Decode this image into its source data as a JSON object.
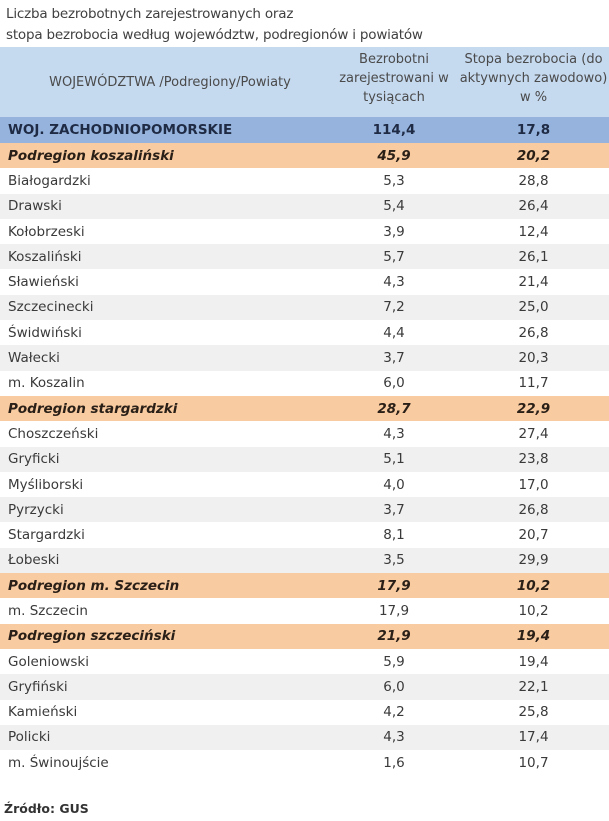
{
  "title": {
    "line1": "Liczba bezrobotnych zarejestrowanych oraz",
    "line2": "stopa bezrobocia według województw, podregionów  i  powiatów"
  },
  "header": {
    "col1": "WOJEWÓDZTWA /Podregiony/Powiaty",
    "col2": "Bezrobotni zarejestrowani w tysiącach",
    "col3": "Stopa bezrobocia (do aktywnych zawodowo) w %"
  },
  "colors": {
    "header_bg": "#c5d9ef",
    "voivodeship_bg": "#95b3dc",
    "subregion_bg": "#f9cba0",
    "alt_row_bg": "#f0f0f0"
  },
  "voivodeship": {
    "name": "WOJ. ZACHODNIOPOMORSKIE",
    "unemployed": "114,4",
    "rate": "17,8"
  },
  "rows": [
    {
      "type": "pod",
      "name": "Podregion koszaliński",
      "unemployed": "45,9",
      "rate": "20,2"
    },
    {
      "type": "odd",
      "name": "Białogardzki",
      "unemployed": "5,3",
      "rate": "28,8"
    },
    {
      "type": "even",
      "name": "Drawski",
      "unemployed": "5,4",
      "rate": "26,4"
    },
    {
      "type": "odd",
      "name": "Kołobrzeski",
      "unemployed": "3,9",
      "rate": "12,4"
    },
    {
      "type": "even",
      "name": "Koszaliński",
      "unemployed": "5,7",
      "rate": "26,1"
    },
    {
      "type": "odd",
      "name": "Sławieński",
      "unemployed": "4,3",
      "rate": "21,4"
    },
    {
      "type": "even",
      "name": "Szczecinecki",
      "unemployed": "7,2",
      "rate": "25,0"
    },
    {
      "type": "odd",
      "name": "Świdwiński",
      "unemployed": "4,4",
      "rate": "26,8"
    },
    {
      "type": "even",
      "name": "Wałecki",
      "unemployed": "3,7",
      "rate": "20,3"
    },
    {
      "type": "odd",
      "name": "m. Koszalin",
      "unemployed": "6,0",
      "rate": "11,7"
    },
    {
      "type": "pod",
      "name": "Podregion stargardzki",
      "unemployed": "28,7",
      "rate": "22,9"
    },
    {
      "type": "odd",
      "name": "Choszczeński",
      "unemployed": "4,3",
      "rate": "27,4"
    },
    {
      "type": "even",
      "name": "Gryficki",
      "unemployed": "5,1",
      "rate": "23,8"
    },
    {
      "type": "odd",
      "name": "Myśliborski",
      "unemployed": "4,0",
      "rate": "17,0"
    },
    {
      "type": "even",
      "name": "Pyrzycki",
      "unemployed": "3,7",
      "rate": "26,8"
    },
    {
      "type": "odd",
      "name": "Stargardzki",
      "unemployed": "8,1",
      "rate": "20,7"
    },
    {
      "type": "even",
      "name": "Łobeski",
      "unemployed": "3,5",
      "rate": "29,9"
    },
    {
      "type": "pod",
      "name": "Podregion m. Szczecin",
      "unemployed": "17,9",
      "rate": "10,2"
    },
    {
      "type": "odd",
      "name": "m. Szczecin",
      "unemployed": "17,9",
      "rate": "10,2"
    },
    {
      "type": "pod",
      "name": "Podregion szczeciński",
      "unemployed": "21,9",
      "rate": "19,4"
    },
    {
      "type": "odd",
      "name": "Goleniowski",
      "unemployed": "5,9",
      "rate": "19,4"
    },
    {
      "type": "even",
      "name": "Gryfiński",
      "unemployed": "6,0",
      "rate": "22,1"
    },
    {
      "type": "odd",
      "name": "Kamieński",
      "unemployed": "4,2",
      "rate": "25,8"
    },
    {
      "type": "even",
      "name": "Policki",
      "unemployed": "4,3",
      "rate": "17,4"
    },
    {
      "type": "odd",
      "name": "m.  Świnoujście",
      "unemployed": "1,6",
      "rate": "10,7"
    }
  ],
  "source": "Źródło: GUS"
}
